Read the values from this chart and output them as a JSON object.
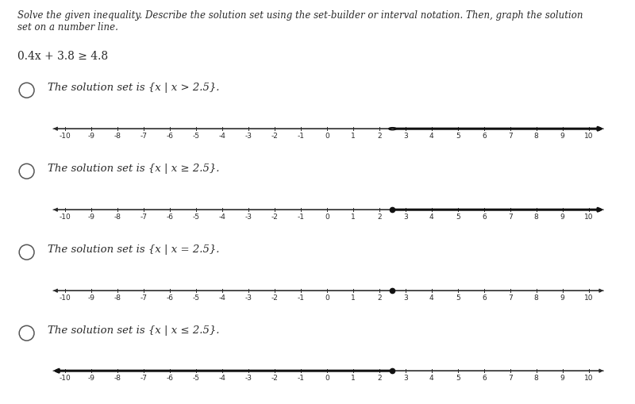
{
  "background_color": "#ffffff",
  "instruction_text_line1": "Solve the given inequality. Describe the solution set using the set-builder or interval notation. Then, graph the solution",
  "instruction_text_line2": "set on a number line.",
  "equation": "0.4x + 3.8 ≥ 4.8",
  "options": [
    {
      "label_parts": [
        "The solution set is ",
        "{x | x > 2.5}",
        "."
      ],
      "number_line_type": "open_right",
      "point": 2.5
    },
    {
      "label_parts": [
        "The solution set is ",
        "{x | x ≥ 2.5}",
        "."
      ],
      "number_line_type": "closed_right",
      "point": 2.5
    },
    {
      "label_parts": [
        "The solution set is ",
        "{x | x = 2.5}",
        "."
      ],
      "number_line_type": "closed_dot",
      "point": 2.5
    },
    {
      "label_parts": [
        "The solution set is ",
        "{x | x ≤ 2.5}",
        "."
      ],
      "number_line_type": "closed_left",
      "point": 2.5
    }
  ],
  "x_min": -10,
  "x_max": 10,
  "tick_labels": [
    -10,
    -9,
    -8,
    -7,
    -6,
    -5,
    -4,
    -3,
    -2,
    -1,
    0,
    1,
    2,
    3,
    4,
    5,
    6,
    7,
    8,
    9,
    10
  ],
  "text_color": "#2a2a2a",
  "line_color": "#2a2a2a",
  "circle_stroke": "#555555",
  "highlight_color": "#111111",
  "label_fontsize": 9.5,
  "tick_fontsize": 6.5,
  "equation_fontsize": 10,
  "instruction_fontsize": 8.5
}
